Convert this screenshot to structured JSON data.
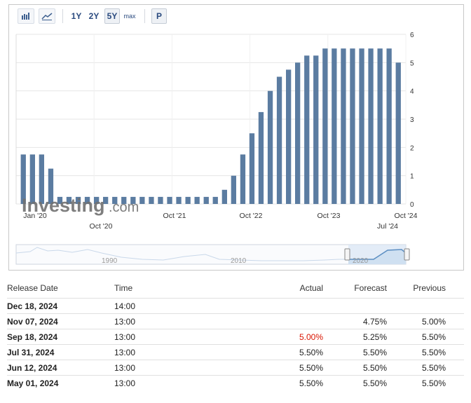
{
  "toolbar": {
    "icons": [
      "bar-chart-icon",
      "line-chart-icon"
    ],
    "periods": [
      "1Y",
      "2Y",
      "5Y",
      "max"
    ],
    "active_period": "5Y",
    "p_label": "P"
  },
  "watermark": {
    "text_main": "Investing",
    "text_suffix": ".com"
  },
  "navigator": {
    "labels": [
      "1990",
      "2010",
      "2020"
    ]
  },
  "colors": {
    "bar": "#5b7ca1",
    "grid": "#e6e6e6",
    "negative": "#d91400",
    "nav_fill": "#cfe0f1",
    "nav_line": "#5b8ec2"
  },
  "chart_data": {
    "type": "bar",
    "title": "",
    "xlabel": "",
    "ylabel": "",
    "ylim": [
      0,
      6
    ],
    "y_ticks": [
      "0",
      "1",
      "2",
      "3",
      "4",
      "5",
      "6"
    ],
    "x_ticks_row1": [
      "Jan '20",
      "Oct '21",
      "Oct '22",
      "Oct '23",
      "Oct '24"
    ],
    "x_ticks_row2": [
      "Oct '20",
      "Jul '24"
    ],
    "values": [
      1.75,
      1.75,
      1.75,
      1.25,
      0.25,
      0.25,
      0.25,
      0.25,
      0.25,
      0.25,
      0.25,
      0.25,
      0.25,
      0.25,
      0.25,
      0.25,
      0.25,
      0.25,
      0.25,
      0.25,
      0.25,
      0.25,
      0.5,
      1.0,
      1.75,
      2.5,
      3.25,
      4.0,
      4.5,
      4.75,
      5.0,
      5.25,
      5.25,
      5.5,
      5.5,
      5.5,
      5.5,
      5.5,
      5.5,
      5.5,
      5.5,
      5.0
    ],
    "grid": true
  },
  "table": {
    "headers": {
      "release_date": "Release Date",
      "time": "Time",
      "actual": "Actual",
      "forecast": "Forecast",
      "previous": "Previous"
    },
    "rows": [
      {
        "date": "Dec 18, 2024",
        "time": "14:00",
        "actual": "",
        "forecast": "",
        "previous": ""
      },
      {
        "date": "Nov 07, 2024",
        "time": "13:00",
        "actual": "",
        "forecast": "4.75%",
        "previous": "5.00%"
      },
      {
        "date": "Sep 18, 2024",
        "time": "13:00",
        "actual": "5.00%",
        "forecast": "5.25%",
        "previous": "5.50%"
      },
      {
        "date": "Jul 31, 2024",
        "time": "13:00",
        "actual": "5.50%",
        "forecast": "5.50%",
        "previous": "5.50%"
      },
      {
        "date": "Jun 12, 2024",
        "time": "13:00",
        "actual": "5.50%",
        "forecast": "5.50%",
        "previous": "5.50%"
      },
      {
        "date": "May 01, 2024",
        "time": "13:00",
        "actual": "5.50%",
        "forecast": "5.50%",
        "previous": "5.50%"
      }
    ]
  }
}
